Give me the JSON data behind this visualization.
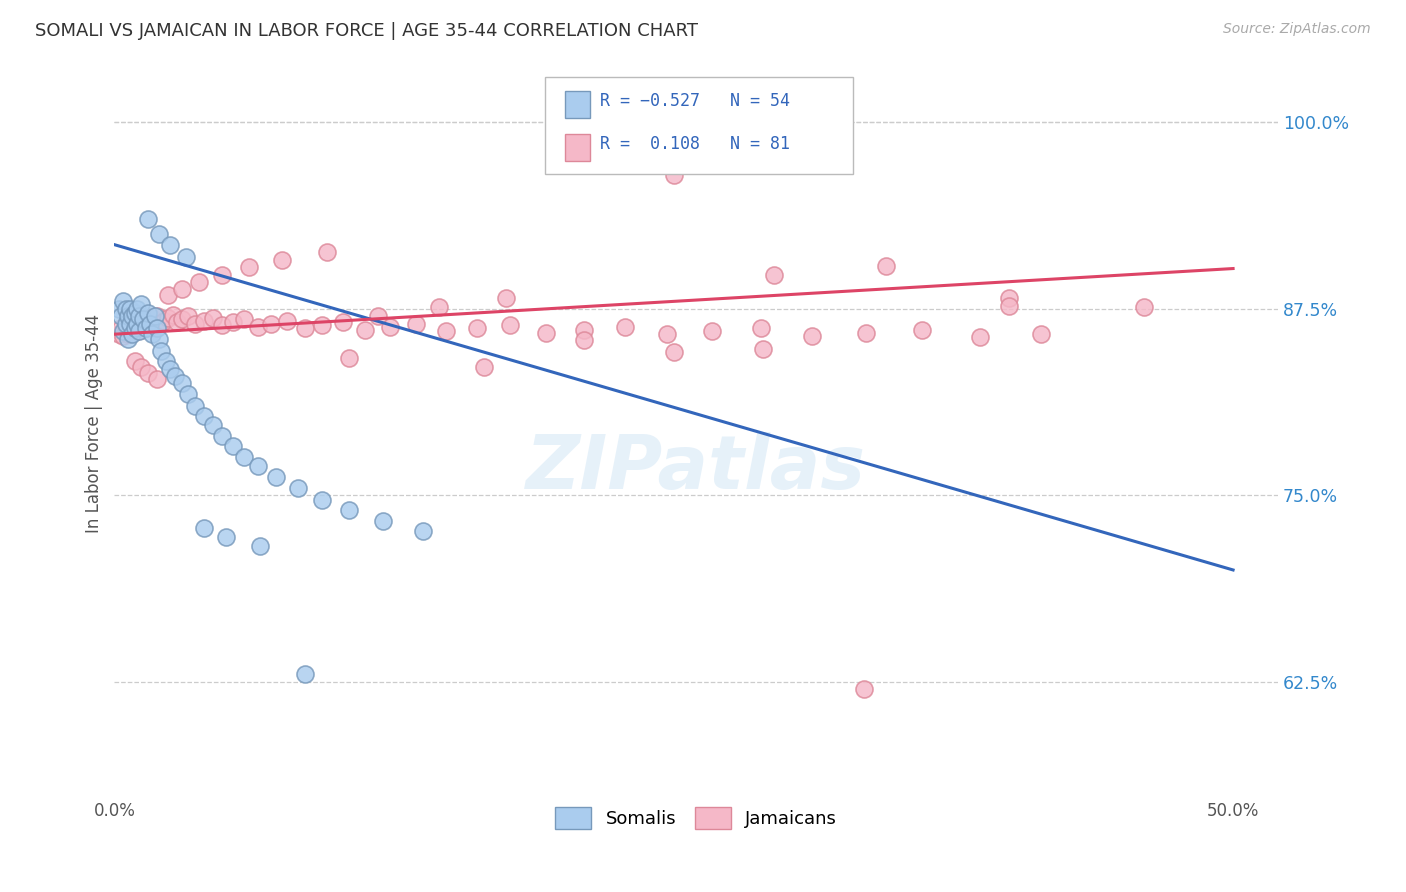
{
  "title": "SOMALI VS JAMAICAN IN LABOR FORCE | AGE 35-44 CORRELATION CHART",
  "source_text": "Source: ZipAtlas.com",
  "ylabel": "In Labor Force | Age 35-44",
  "xlim": [
    0.0,
    0.52
  ],
  "ylim": [
    0.548,
    1.048
  ],
  "yticks": [
    0.625,
    0.75,
    0.875,
    1.0
  ],
  "ytick_labels": [
    "62.5%",
    "75.0%",
    "87.5%",
    "100.0%"
  ],
  "xticks": [
    0.0,
    0.5
  ],
  "xtick_labels": [
    "0.0%",
    "50.0%"
  ],
  "grid_color": "#cccccc",
  "bg_color": "#ffffff",
  "somali_fill": "#aaccee",
  "somali_edge": "#7799bb",
  "jamaican_fill": "#f5b8c8",
  "jamaican_edge": "#dd8899",
  "somali_line_color": "#3366bb",
  "jamaican_line_color": "#dd4466",
  "watermark": "ZIPatlas",
  "legend_somali": "Somalis",
  "legend_jamaican": "Jamaicans",
  "somali_line_x": [
    0.0,
    0.5
  ],
  "somali_line_y": [
    0.918,
    0.7
  ],
  "jamaican_line_x": [
    0.0,
    0.5
  ],
  "jamaican_line_y": [
    0.858,
    0.902
  ],
  "somali_pts_x": [
    0.002,
    0.003,
    0.004,
    0.004,
    0.005,
    0.005,
    0.006,
    0.006,
    0.007,
    0.007,
    0.008,
    0.008,
    0.009,
    0.009,
    0.01,
    0.01,
    0.011,
    0.011,
    0.012,
    0.013,
    0.014,
    0.015,
    0.016,
    0.017,
    0.018,
    0.019,
    0.02,
    0.021,
    0.023,
    0.025,
    0.027,
    0.03,
    0.033,
    0.036,
    0.04,
    0.044,
    0.048,
    0.053,
    0.058,
    0.064,
    0.072,
    0.082,
    0.093,
    0.105,
    0.12,
    0.138,
    0.015,
    0.02,
    0.025,
    0.032,
    0.04,
    0.05,
    0.065,
    0.085
  ],
  "somali_pts_y": [
    0.875,
    0.87,
    0.88,
    0.86,
    0.875,
    0.865,
    0.87,
    0.855,
    0.875,
    0.865,
    0.87,
    0.858,
    0.872,
    0.862,
    0.875,
    0.865,
    0.87,
    0.86,
    0.878,
    0.868,
    0.862,
    0.872,
    0.865,
    0.858,
    0.87,
    0.862,
    0.855,
    0.847,
    0.84,
    0.835,
    0.83,
    0.825,
    0.818,
    0.81,
    0.803,
    0.797,
    0.79,
    0.783,
    0.776,
    0.77,
    0.762,
    0.755,
    0.747,
    0.74,
    0.733,
    0.726,
    0.935,
    0.925,
    0.918,
    0.91,
    0.728,
    0.722,
    0.716,
    0.63
  ],
  "jamaican_pts_x": [
    0.002,
    0.003,
    0.004,
    0.005,
    0.006,
    0.007,
    0.008,
    0.009,
    0.01,
    0.011,
    0.012,
    0.013,
    0.014,
    0.015,
    0.016,
    0.017,
    0.018,
    0.019,
    0.02,
    0.022,
    0.024,
    0.026,
    0.028,
    0.03,
    0.033,
    0.036,
    0.04,
    0.044,
    0.048,
    0.053,
    0.058,
    0.064,
    0.07,
    0.077,
    0.085,
    0.093,
    0.102,
    0.112,
    0.123,
    0.135,
    0.148,
    0.162,
    0.177,
    0.193,
    0.21,
    0.228,
    0.247,
    0.267,
    0.289,
    0.312,
    0.336,
    0.361,
    0.387,
    0.414,
    0.009,
    0.012,
    0.015,
    0.019,
    0.024,
    0.03,
    0.038,
    0.048,
    0.06,
    0.075,
    0.095,
    0.118,
    0.145,
    0.175,
    0.21,
    0.25,
    0.295,
    0.345,
    0.4,
    0.46,
    0.25,
    0.29,
    0.105,
    0.165,
    0.335,
    0.4
  ],
  "jamaican_pts_y": [
    0.858,
    0.862,
    0.857,
    0.863,
    0.858,
    0.864,
    0.859,
    0.865,
    0.86,
    0.866,
    0.861,
    0.867,
    0.862,
    0.868,
    0.863,
    0.869,
    0.864,
    0.87,
    0.865,
    0.867,
    0.869,
    0.871,
    0.866,
    0.868,
    0.87,
    0.865,
    0.867,
    0.869,
    0.864,
    0.866,
    0.868,
    0.863,
    0.865,
    0.867,
    0.862,
    0.864,
    0.866,
    0.861,
    0.863,
    0.865,
    0.86,
    0.862,
    0.864,
    0.859,
    0.861,
    0.863,
    0.858,
    0.86,
    0.862,
    0.857,
    0.859,
    0.861,
    0.856,
    0.858,
    0.84,
    0.836,
    0.832,
    0.828,
    0.884,
    0.888,
    0.893,
    0.898,
    0.903,
    0.908,
    0.913,
    0.87,
    0.876,
    0.882,
    0.854,
    0.846,
    0.898,
    0.904,
    0.882,
    0.876,
    0.965,
    0.848,
    0.842,
    0.836,
    0.62,
    0.877
  ]
}
